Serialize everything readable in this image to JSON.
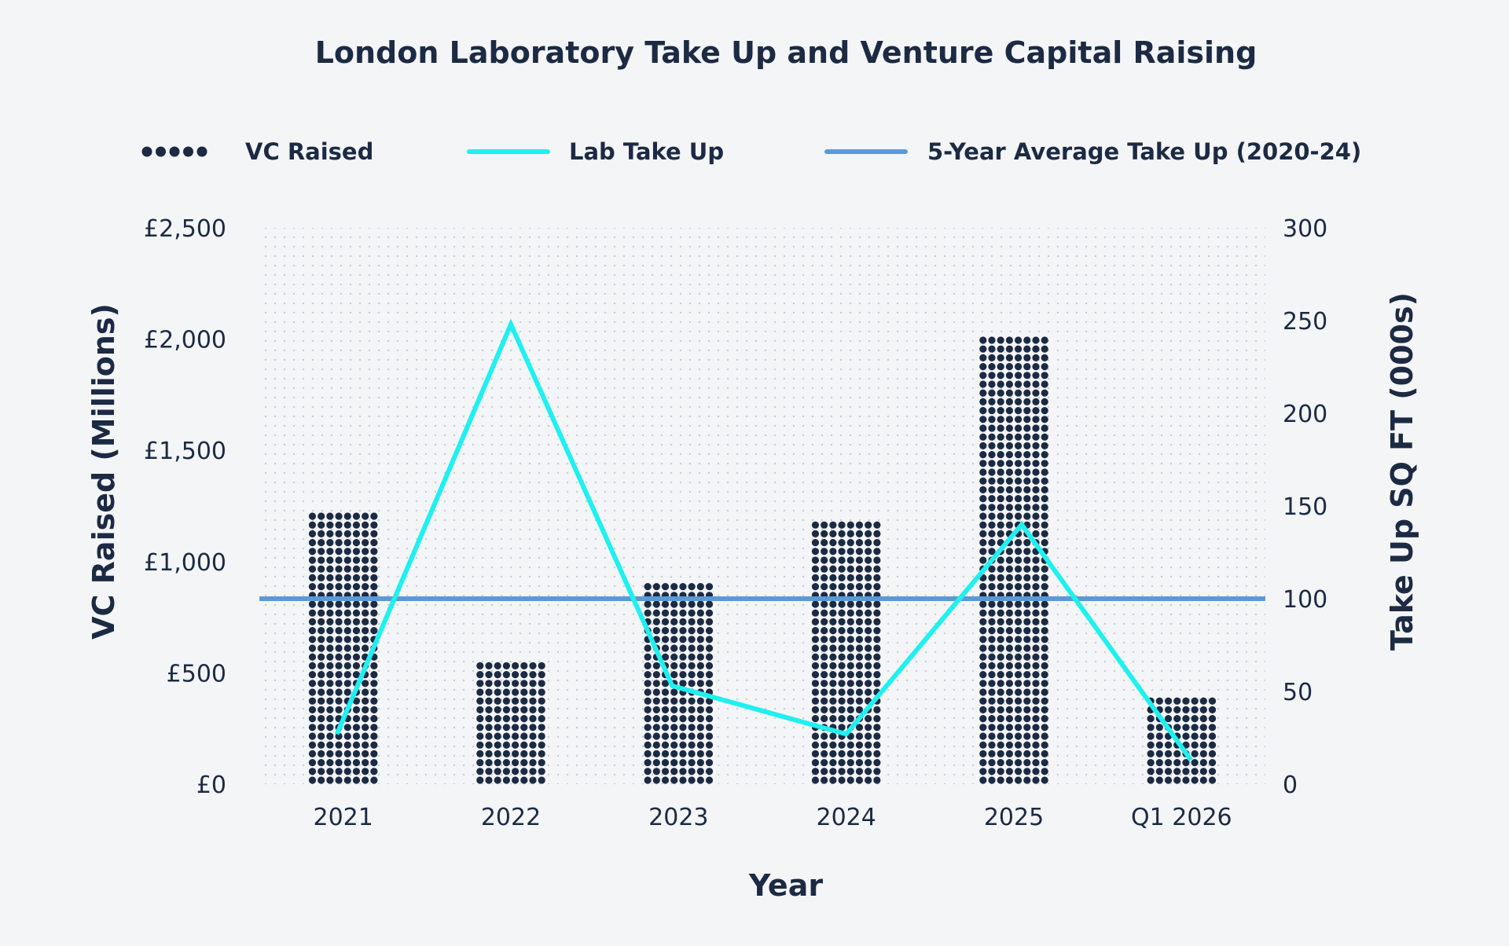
{
  "chart_data": {
    "type": "bar",
    "title": "London Laboratory Take Up and Venture Capital Raising",
    "categories": [
      "2021",
      "2022",
      "2023",
      "2024",
      "2025",
      "Q1 2026"
    ],
    "xlabel": "Year",
    "ylabel": "VC Raised (Millions)",
    "ylabel_right": "Take Up SQ FT (000s)",
    "ylim": [
      0,
      2500
    ],
    "ylim_right": [
      0,
      300
    ],
    "yticks": [
      "£0",
      "£500",
      "£1,000",
      "£1,500",
      "£2,000",
      "£2,500"
    ],
    "yticks_values": [
      0,
      500,
      1000,
      1500,
      2000,
      2500
    ],
    "yticks_right": [
      "0",
      "50",
      "100",
      "150",
      "200",
      "250",
      "300"
    ],
    "yticks_right_values": [
      0,
      50,
      100,
      150,
      200,
      250,
      300
    ],
    "legend_position": "top",
    "grid": "dotted",
    "series": [
      {
        "name": "VC Raised",
        "type": "bar",
        "axis": "left",
        "style": "dotted",
        "color": "#1c2a44",
        "values": [
          1250,
          580,
          910,
          1190,
          2020,
          420
        ]
      },
      {
        "name": "Lab Take Up",
        "type": "line",
        "axis": "right",
        "color": "#1ff0f0",
        "values": [
          27,
          248,
          53,
          27,
          140,
          13
        ]
      },
      {
        "name": "5-Year Average Take Up (2020-24)",
        "type": "hline",
        "axis": "right",
        "color": "#5a9ad6",
        "value": 100
      }
    ]
  }
}
